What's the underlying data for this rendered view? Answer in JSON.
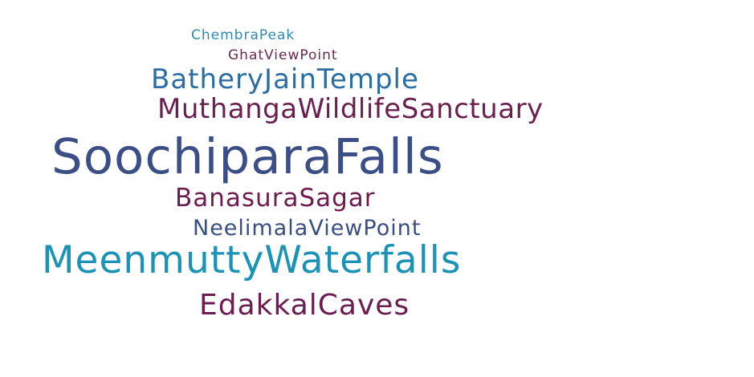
{
  "words": [
    {
      "text": "ChembraPeak",
      "color": "#2E8AB3"
    },
    {
      "text": "GhatViewPoint",
      "color": "#6A2A4E"
    },
    {
      "text": "BatheryJainTemple",
      "color": "#2B6EA3"
    },
    {
      "text": "MuthangaWildlifeSanctuary",
      "color": "#6B1F4F"
    },
    {
      "text": "SoochiparaFalls",
      "color": "#3B4F86"
    },
    {
      "text": "BanasuraSagar",
      "color": "#6E1C4E"
    },
    {
      "text": "NeelimalaViewPoint",
      "color": "#3A4F80"
    },
    {
      "text": "MeenmuttyWaterfalls",
      "color": "#1B93B6"
    },
    {
      "text": "EdakkalCaves",
      "color": "#6A1D4F"
    }
  ]
}
